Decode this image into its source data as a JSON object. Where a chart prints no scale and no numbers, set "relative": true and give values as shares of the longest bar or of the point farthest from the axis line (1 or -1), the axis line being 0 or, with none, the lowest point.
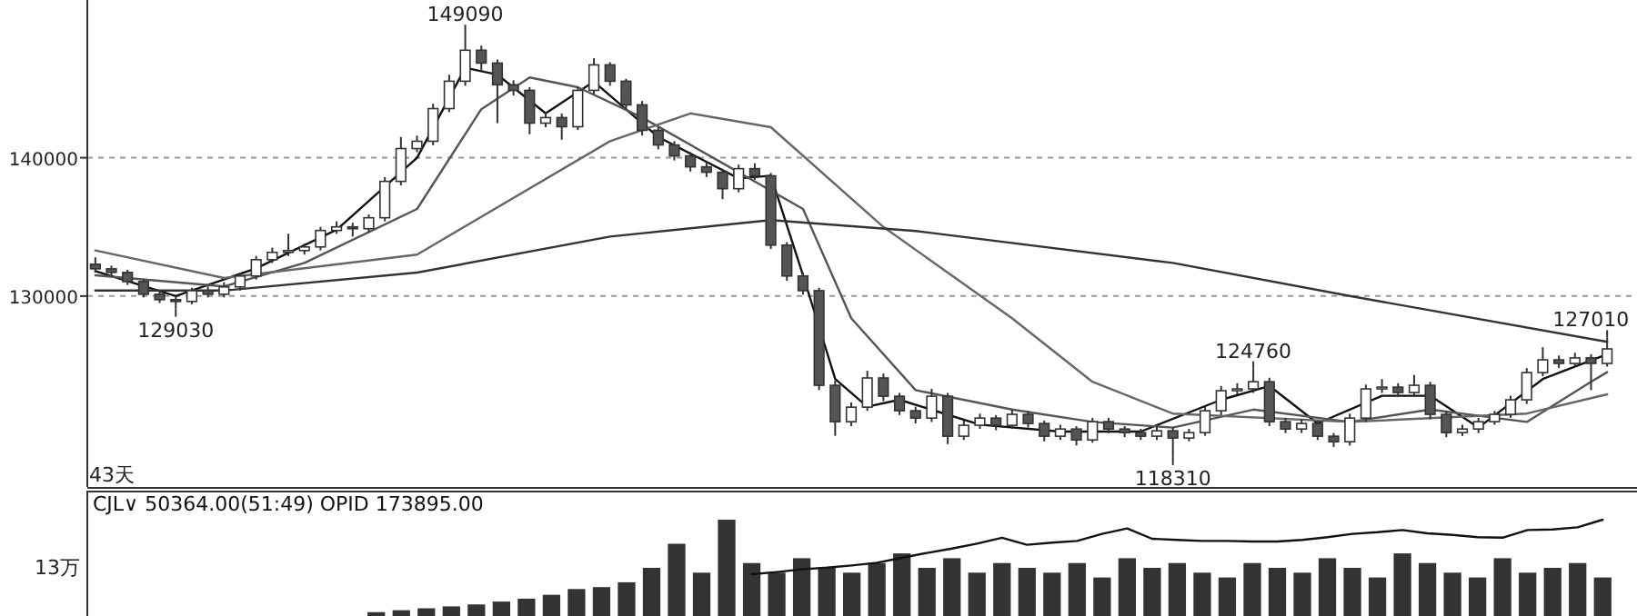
{
  "chart_data": [
    {
      "type": "candlestick",
      "categories": [
        null,
        null,
        null,
        null,
        null,
        null,
        null,
        null,
        null,
        null,
        null,
        null,
        null,
        null,
        null,
        null,
        null,
        null,
        null,
        null,
        null,
        null,
        null,
        null,
        null,
        null,
        null,
        null,
        null,
        null,
        null,
        null,
        null,
        null,
        null,
        null,
        null,
        null,
        null,
        null,
        null,
        null,
        null,
        null,
        null,
        null,
        null,
        null,
        null,
        null,
        null,
        null,
        null,
        null,
        null,
        null,
        null,
        null,
        null,
        null,
        null,
        null,
        null,
        null,
        null,
        null,
        null,
        null,
        null,
        null,
        null,
        null,
        null,
        null,
        null,
        null,
        null,
        null,
        null,
        null,
        null,
        null,
        null,
        null,
        null,
        null,
        null,
        null,
        null,
        null,
        null,
        null,
        null,
        null,
        null
      ],
      "ohlc": [
        [
          132300,
          132800,
          131700,
          131970
        ],
        [
          131970,
          132200,
          131400,
          131710
        ],
        [
          131710,
          131900,
          130800,
          131050
        ],
        [
          131050,
          131200,
          129900,
          130130
        ],
        [
          130130,
          130400,
          129500,
          129740
        ],
        [
          129740,
          130000,
          129030,
          129610
        ],
        [
          129610,
          130600,
          129400,
          130390
        ],
        [
          130390,
          130700,
          129900,
          130130
        ],
        [
          130130,
          131000,
          129900,
          130660
        ],
        [
          130660,
          131700,
          130400,
          131450
        ],
        [
          131450,
          132900,
          131200,
          132630
        ],
        [
          132630,
          133500,
          132400,
          133160
        ],
        [
          133160,
          134500,
          132900,
          133290
        ],
        [
          133290,
          133800,
          133000,
          133550
        ],
        [
          133550,
          135000,
          133300,
          134740
        ],
        [
          134740,
          135400,
          134500,
          135000
        ],
        [
          135000,
          135300,
          134300,
          134870
        ],
        [
          134870,
          135900,
          134600,
          135660
        ],
        [
          135660,
          138600,
          135400,
          138290
        ],
        [
          138290,
          141500,
          138000,
          140660
        ],
        [
          140660,
          141600,
          140400,
          141190
        ],
        [
          141190,
          143900,
          140900,
          143550
        ],
        [
          143550,
          146000,
          143300,
          145530
        ],
        [
          145530,
          149090,
          145200,
          147770
        ],
        [
          147770,
          148100,
          146300,
          146840
        ],
        [
          146840,
          147100,
          142500,
          145270
        ],
        [
          145270,
          145600,
          144500,
          144870
        ],
        [
          144870,
          145100,
          141700,
          142500
        ],
        [
          142500,
          143300,
          142200,
          142900
        ],
        [
          142900,
          143200,
          141300,
          142240
        ],
        [
          142240,
          145100,
          142000,
          144870
        ],
        [
          144870,
          147200,
          144600,
          146710
        ],
        [
          146710,
          146900,
          145200,
          145530
        ],
        [
          145530,
          145700,
          143500,
          143820
        ],
        [
          143820,
          144100,
          141600,
          141980
        ],
        [
          141980,
          142200,
          140600,
          140920
        ],
        [
          140920,
          141200,
          139800,
          140130
        ],
        [
          140130,
          140400,
          139000,
          139340
        ],
        [
          139340,
          139700,
          138600,
          138950
        ],
        [
          138950,
          139200,
          137000,
          137760
        ],
        [
          137760,
          139500,
          137500,
          139210
        ],
        [
          139210,
          139600,
          138400,
          138690
        ],
        [
          138690,
          138900,
          133400,
          133680
        ],
        [
          133680,
          133900,
          131100,
          131450
        ],
        [
          131450,
          131700,
          130100,
          130390
        ],
        [
          130390,
          130600,
          123200,
          123550
        ],
        [
          123550,
          123900,
          119900,
          120920
        ],
        [
          120920,
          122300,
          120600,
          121970
        ],
        [
          121970,
          124600,
          121700,
          124080
        ],
        [
          124080,
          124400,
          122400,
          122760
        ],
        [
          122760,
          123000,
          121400,
          121710
        ],
        [
          121710,
          122000,
          120800,
          121180
        ],
        [
          121180,
          123300,
          120900,
          122760
        ],
        [
          122760,
          123000,
          119300,
          119870
        ],
        [
          119870,
          121000,
          119600,
          120660
        ],
        [
          120660,
          121500,
          120400,
          121180
        ],
        [
          121180,
          121400,
          120300,
          120660
        ],
        [
          120660,
          121800,
          120400,
          121450
        ],
        [
          121450,
          121700,
          120500,
          120790
        ],
        [
          120790,
          121000,
          119500,
          119870
        ],
        [
          119870,
          120700,
          119600,
          120390
        ],
        [
          120390,
          120600,
          119200,
          119600
        ],
        [
          119600,
          121200,
          119400,
          120920
        ],
        [
          120920,
          121200,
          120100,
          120390
        ],
        [
          120390,
          120600,
          119800,
          120130
        ],
        [
          120130,
          120400,
          119600,
          119870
        ],
        [
          119870,
          120600,
          119600,
          120260
        ],
        [
          120260,
          120500,
          118310,
          119740
        ],
        [
          119740,
          120400,
          119500,
          120130
        ],
        [
          120130,
          122000,
          119900,
          121710
        ],
        [
          121710,
          123500,
          121400,
          123160
        ],
        [
          123160,
          123700,
          122900,
          123290
        ],
        [
          123290,
          124760,
          123000,
          123810
        ],
        [
          123810,
          124100,
          120600,
          120920
        ],
        [
          120920,
          121200,
          120100,
          120390
        ],
        [
          120390,
          121100,
          120100,
          120790
        ],
        [
          120790,
          121000,
          119600,
          119870
        ],
        [
          119870,
          120100,
          119100,
          119470
        ],
        [
          119470,
          121500,
          119200,
          121180
        ],
        [
          121180,
          123600,
          120900,
          123290
        ],
        [
          123290,
          124000,
          123000,
          123420
        ],
        [
          123420,
          123700,
          122700,
          123030
        ],
        [
          123030,
          124300,
          122800,
          123550
        ],
        [
          123550,
          123800,
          121100,
          121450
        ],
        [
          121450,
          121700,
          119800,
          120130
        ],
        [
          120130,
          120700,
          119900,
          120390
        ],
        [
          120390,
          121200,
          120100,
          120920
        ],
        [
          120920,
          121700,
          120700,
          121450
        ],
        [
          121450,
          122800,
          121200,
          122500
        ],
        [
          122500,
          124800,
          122200,
          124470
        ],
        [
          124470,
          126300,
          124200,
          125390
        ],
        [
          125390,
          125700,
          124800,
          125130
        ],
        [
          125130,
          125900,
          124900,
          125530
        ],
        [
          125530,
          125800,
          123200,
          125130
        ],
        [
          125130,
          127010,
          124900,
          126180
        ]
      ],
      "series": [
        {
          "type": "line",
          "color": "#111111",
          "values": [
            131800,
            null,
            null,
            null,
            null,
            130000,
            null,
            null,
            null,
            null,
            132000,
            null,
            null,
            null,
            null,
            134800,
            null,
            null,
            null,
            null,
            140000,
            null,
            null,
            146500,
            null,
            146000,
            null,
            null,
            143200,
            null,
            null,
            145500,
            null,
            null,
            null,
            141500,
            null,
            null,
            null,
            null,
            138500,
            null,
            138700,
            null,
            131500,
            null,
            124000,
            null,
            122000,
            null,
            122500,
            null,
            null,
            null,
            null,
            120700,
            null,
            null,
            null,
            null,
            120200,
            null,
            null,
            null,
            null,
            120200,
            null,
            null,
            null,
            null,
            122500,
            null,
            null,
            123500,
            null,
            null,
            120800,
            null,
            null,
            null,
            122800,
            null,
            null,
            122800,
            null,
            null,
            120500,
            null,
            null,
            null,
            124000,
            null,
            null,
            null,
            125800
          ]
        },
        {
          "type": "line",
          "color": "#555555",
          "values": [
            131500,
            null,
            null,
            null,
            null,
            null,
            null,
            null,
            130700,
            null,
            null,
            null,
            null,
            132400,
            null,
            null,
            null,
            null,
            null,
            null,
            136300,
            null,
            null,
            null,
            143500,
            null,
            null,
            145800,
            null,
            null,
            145100,
            null,
            null,
            null,
            142900,
            null,
            null,
            null,
            null,
            139600,
            null,
            null,
            null,
            null,
            136300,
            null,
            null,
            128400,
            null,
            null,
            null,
            123200,
            null,
            null,
            null,
            null,
            null,
            121800,
            null,
            null,
            null,
            null,
            120900,
            null,
            null,
            null,
            null,
            120500,
            null,
            null,
            null,
            null,
            121800,
            null,
            null,
            null,
            null,
            null,
            120900,
            null,
            null,
            null,
            null,
            121800,
            null,
            null,
            null,
            null,
            null,
            120900,
            null,
            null,
            null,
            123800,
            124500
          ]
        },
        {
          "type": "line",
          "color": "#666666",
          "values": [
            133300,
            null,
            null,
            null,
            null,
            null,
            null,
            null,
            131300,
            null,
            null,
            null,
            null,
            null,
            null,
            null,
            null,
            null,
            null,
            null,
            133000,
            null,
            null,
            null,
            null,
            null,
            null,
            null,
            null,
            null,
            null,
            null,
            141200,
            null,
            null,
            null,
            null,
            143200,
            null,
            null,
            null,
            null,
            142200,
            null,
            null,
            null,
            null,
            null,
            null,
            135000,
            null,
            null,
            null,
            null,
            null,
            null,
            null,
            128400,
            null,
            null,
            null,
            null,
            123800,
            null,
            null,
            null,
            null,
            121500,
            null,
            null,
            null,
            null,
            null,
            null,
            null,
            null,
            null,
            null,
            120900,
            null,
            null,
            null,
            null,
            null,
            null,
            null,
            null,
            null,
            null,
            121500,
            null,
            null,
            null,
            null,
            122900
          ]
        },
        {
          "type": "line",
          "color": "#333333",
          "values": [
            130400,
            null,
            null,
            null,
            null,
            null,
            null,
            null,
            130400,
            null,
            null,
            null,
            null,
            null,
            null,
            null,
            null,
            null,
            null,
            null,
            131700,
            null,
            null,
            null,
            null,
            null,
            null,
            null,
            null,
            null,
            null,
            null,
            134300,
            null,
            null,
            null,
            null,
            null,
            null,
            null,
            null,
            null,
            135500,
            null,
            null,
            null,
            null,
            null,
            null,
            null,
            null,
            134700,
            null,
            null,
            null,
            null,
            null,
            null,
            null,
            null,
            null,
            null,
            null,
            null,
            null,
            null,
            null,
            132400,
            null,
            null,
            null,
            null,
            null,
            null,
            null,
            null,
            null,
            null,
            130000,
            null,
            null,
            null,
            null,
            null,
            null,
            null,
            null,
            null,
            null,
            null,
            null,
            null,
            null,
            null,
            126700
          ]
        }
      ],
      "ylim": [
        116200,
        151400
      ],
      "yticks": [
        130000,
        140000
      ],
      "grid": "y",
      "annotations": [
        {
          "text": "149090",
          "y": 149090
        },
        {
          "text": "129030",
          "y": 129030
        },
        {
          "text": "124760",
          "y": 124760
        },
        {
          "text": "118310",
          "y": 118310
        },
        {
          "text": "127010",
          "y": 127010
        },
        "43天"
      ]
    },
    {
      "type": "bar",
      "relative": true,
      "title": "CJL∨ 50364.00(51:49) OPID 173895.00",
      "categories": [
        null,
        null,
        null,
        null,
        null,
        null,
        null,
        null,
        null,
        null,
        null,
        null,
        null,
        null,
        null,
        null,
        null,
        null,
        null,
        null,
        null,
        null,
        null,
        null,
        null,
        null,
        null,
        null,
        null,
        null,
        null,
        null,
        null,
        null,
        null,
        null,
        null,
        null,
        null,
        null,
        null,
        null,
        null,
        null,
        null,
        null,
        null,
        null,
        null,
        null
      ],
      "series": [
        {
          "color": "#333333",
          "values": [
            0.04,
            0.06,
            0.08,
            0.1,
            0.12,
            0.15,
            0.18,
            0.22,
            0.28,
            0.3,
            0.35,
            0.5,
            0.75,
            0.45,
            1.0,
            0.55,
            0.45,
            0.6,
            0.5,
            0.45,
            0.55,
            0.65,
            0.5,
            0.6,
            0.45,
            0.55,
            0.5,
            0.45,
            0.55,
            0.4,
            0.6,
            0.5,
            0.55,
            0.45,
            0.4,
            0.55,
            0.5,
            0.45,
            0.6,
            0.5,
            0.4,
            0.65,
            0.55,
            0.45,
            0.4,
            0.6,
            0.45,
            0.5,
            0.55,
            0.4
          ]
        }
      ],
      "annotations": [
        "13万"
      ]
    },
    {
      "type": "line",
      "relative": true,
      "categories": [
        null,
        null,
        null,
        null,
        null,
        null,
        null,
        null,
        null,
        null,
        null,
        null,
        null,
        null,
        null,
        null,
        null,
        null,
        null,
        null,
        null,
        null,
        null,
        null,
        null,
        null,
        null,
        null,
        null,
        null,
        null,
        null,
        null,
        null,
        null,
        null,
        null,
        null,
        null,
        null,
        null,
        null,
        null,
        null,
        null,
        null,
        null,
        null,
        null,
        null
      ],
      "series": [
        {
          "color": "#111111",
          "values": [
            null,
            null,
            null,
            null,
            null,
            null,
            null,
            null,
            null,
            null,
            null,
            null,
            null,
            null,
            null,
            0,
            0.04,
            0.09,
            0.12,
            0.16,
            0.21,
            0.3,
            0.39,
            0.47,
            0.56,
            0.67,
            0.54,
            0.58,
            0.61,
            0.74,
            0.84,
            0.65,
            0.63,
            0.61,
            0.61,
            0.6,
            0.6,
            0.63,
            0.68,
            0.74,
            0.77,
            0.81,
            0.75,
            0.72,
            0.68,
            0.67,
            0.81,
            0.82,
            0.86,
            1
          ]
        }
      ]
    }
  ]
}
